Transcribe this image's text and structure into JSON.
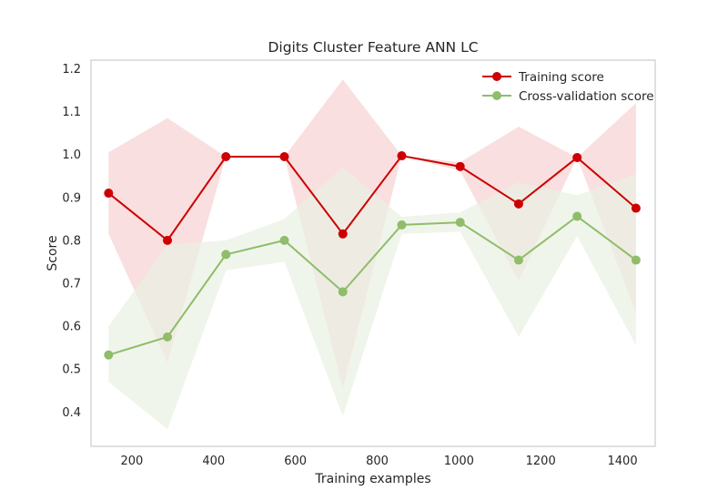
{
  "chart_data": {
    "type": "line",
    "title": "Digits Cluster Feature ANN LC",
    "xlabel": "Training examples",
    "ylabel": "Score",
    "xlim": [
      100,
      1480
    ],
    "ylim": [
      0.32,
      1.22
    ],
    "xticks": [
      200,
      400,
      600,
      800,
      1000,
      1200,
      1400
    ],
    "yticks": [
      0.4,
      0.5,
      0.6,
      0.7,
      0.8,
      0.9,
      1.0,
      1.1,
      1.2
    ],
    "ytick_labels": [
      "0.4",
      "0.5",
      "0.6",
      "0.7",
      "0.8",
      "0.9",
      "1.0",
      "1.1",
      "1.2"
    ],
    "grid": false,
    "legend_position": "top-right",
    "x": [
      143,
      287,
      430,
      573,
      716,
      860,
      1003,
      1146,
      1289,
      1433
    ],
    "series": [
      {
        "name": "Training score",
        "color": "#cc0000",
        "band_color": "#f7d4d4",
        "values": [
          0.91,
          0.8,
          0.995,
          0.995,
          0.815,
          0.997,
          0.972,
          0.885,
          0.993,
          0.875
        ],
        "band_upper": [
          1.005,
          1.085,
          0.995,
          0.995,
          1.175,
          0.997,
          0.982,
          1.065,
          0.993,
          1.12
        ],
        "band_lower": [
          0.815,
          0.515,
          0.995,
          0.995,
          0.455,
          0.997,
          0.962,
          0.705,
          0.993,
          0.63
        ]
      },
      {
        "name": "Cross-validation score",
        "color": "#8fbd6a",
        "band_color": "#eaf1e2",
        "values": [
          0.533,
          0.575,
          0.767,
          0.8,
          0.68,
          0.836,
          0.842,
          0.754,
          0.856,
          0.754
        ],
        "band_upper": [
          0.6,
          0.79,
          0.8,
          0.85,
          0.97,
          0.855,
          0.865,
          0.935,
          0.905,
          0.955
        ],
        "band_lower": [
          0.47,
          0.36,
          0.73,
          0.75,
          0.39,
          0.815,
          0.82,
          0.575,
          0.81,
          0.555
        ]
      }
    ]
  }
}
